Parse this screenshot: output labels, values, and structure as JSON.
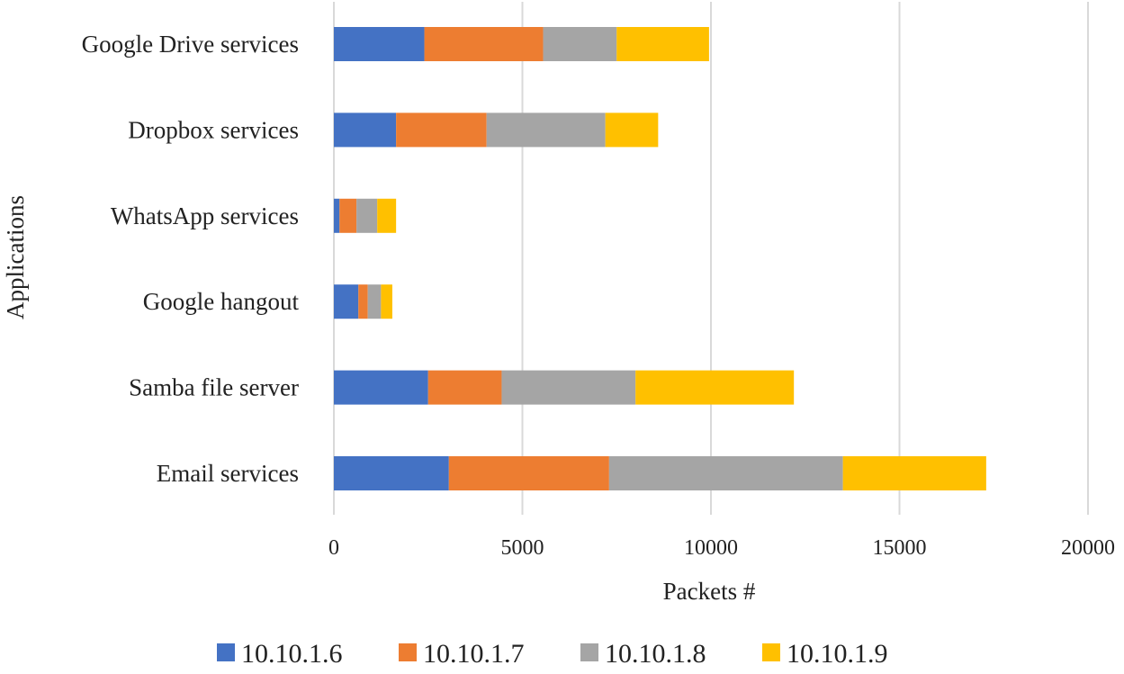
{
  "chart_data": {
    "type": "bar",
    "orientation": "horizontal",
    "stacked": true,
    "categories": [
      "Google Drive services",
      "Dropbox services",
      "WhatsApp services",
      "Google hangout",
      "Samba file server",
      "Email services"
    ],
    "series": [
      {
        "name": "10.10.1.6",
        "color": "#4472C4",
        "values": [
          2400,
          1650,
          150,
          650,
          2500,
          3050
        ]
      },
      {
        "name": "10.10.1.7",
        "color": "#ED7D31",
        "values": [
          3150,
          2400,
          450,
          250,
          1950,
          4250
        ]
      },
      {
        "name": "10.10.1.8",
        "color": "#A5A5A5",
        "values": [
          1950,
          3150,
          550,
          350,
          3550,
          6200
        ]
      },
      {
        "name": "10.10.1.9",
        "color": "#FFC000",
        "values": [
          2450,
          1400,
          500,
          300,
          4200,
          3800
        ]
      }
    ],
    "xlabel": "Packets #",
    "ylabel": "Applications",
    "xlim": [
      0,
      20000
    ],
    "xticks": [
      "0",
      "5000",
      "10000",
      "15000",
      "20000"
    ],
    "grid": "vertical",
    "legend": "bottom"
  }
}
